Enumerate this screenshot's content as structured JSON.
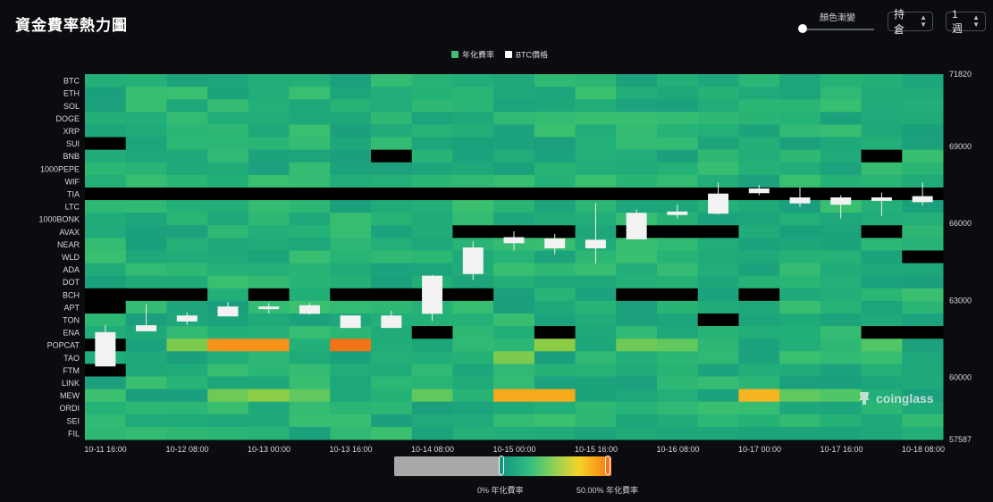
{
  "header": {
    "title": "資金費率熱力圖",
    "slider_label": "顏色漸變",
    "select_type": "持倉",
    "select_period": "1週"
  },
  "colorbar": {
    "min_label": "0% 年化費率",
    "max_label": "50.00% 年化費率"
  },
  "watermark": "coinglass",
  "chart_data": {
    "type": "heatmap",
    "legend": [
      {
        "name": "年化費率",
        "color": "#3fbf72"
      },
      {
        "name": "BTC價格",
        "color": "#ffffff"
      }
    ],
    "legend_position": "top",
    "rows": [
      "BTC",
      "ETH",
      "SOL",
      "DOGE",
      "XRP",
      "SUI",
      "BNB",
      "1000PEPE",
      "WIF",
      "TIA",
      "LTC",
      "1000BONK",
      "AVAX",
      "NEAR",
      "WLD",
      "ADA",
      "DOT",
      "BCH",
      "APT",
      "TON",
      "ENA",
      "POPCAT",
      "TAO",
      "FTM",
      "LINK",
      "MEW",
      "ORDI",
      "SEI",
      "FIL"
    ],
    "x_ticks": [
      "10-11 16:00",
      "10-12 08:00",
      "10-13 00:00",
      "10-13 16:00",
      "10-14 08:00",
      "10-15 00:00",
      "10-15 16:00",
      "10-16 08:00",
      "10-17 00:00",
      "10-17 16:00",
      "10-18 08:00"
    ],
    "y_right_ticks": [
      71820,
      69000,
      66000,
      63000,
      60000,
      57587
    ],
    "y_right_range": [
      57587,
      71820
    ],
    "color_scale": {
      "min": 0,
      "max": 50,
      "unit": "% annualized"
    },
    "column_count": 21,
    "black_cells": [
      [
        "SUI",
        0
      ],
      [
        "BNB",
        7
      ],
      [
        "BNB",
        19
      ],
      [
        "TIA",
        "all"
      ],
      [
        "AVAX",
        9
      ],
      [
        "AVAX",
        10
      ],
      [
        "AVAX",
        11
      ],
      [
        "AVAX",
        13
      ],
      [
        "AVAX",
        14
      ],
      [
        "AVAX",
        15
      ],
      [
        "AVAX",
        19
      ],
      [
        "WLD",
        20
      ],
      [
        "BCH",
        0
      ],
      [
        "BCH",
        1
      ],
      [
        "BCH",
        2
      ],
      [
        "BCH",
        4
      ],
      [
        "BCH",
        6
      ],
      [
        "BCH",
        7
      ],
      [
        "BCH",
        8
      ],
      [
        "BCH",
        9
      ],
      [
        "BCH",
        13
      ],
      [
        "BCH",
        14
      ],
      [
        "BCH",
        16
      ],
      [
        "APT",
        0
      ],
      [
        "TON",
        15
      ],
      [
        "ENA",
        8
      ],
      [
        "ENA",
        11
      ],
      [
        "ENA",
        19
      ],
      [
        "ENA",
        20
      ],
      [
        "POPCAT",
        0
      ],
      [
        "FTM",
        0
      ]
    ],
    "hot_cells": [
      [
        "POPCAT",
        3,
        48
      ],
      [
        "POPCAT",
        4,
        48
      ],
      [
        "POPCAT",
        6,
        50
      ],
      [
        "POPCAT",
        2,
        30
      ],
      [
        "POPCAT",
        11,
        32
      ],
      [
        "POPCAT",
        13,
        28
      ],
      [
        "POPCAT",
        14,
        26
      ],
      [
        "POPCAT",
        19,
        24
      ],
      [
        "TAO",
        10,
        30
      ],
      [
        "MEW",
        10,
        46
      ],
      [
        "MEW",
        11,
        46
      ],
      [
        "MEW",
        16,
        45
      ],
      [
        "MEW",
        4,
        32
      ],
      [
        "MEW",
        3,
        28
      ],
      [
        "MEW",
        5,
        26
      ],
      [
        "MEW",
        8,
        26
      ],
      [
        "MEW",
        17,
        26
      ],
      [
        "MEW",
        18,
        24
      ]
    ],
    "btc_candles": [
      {
        "t": 0,
        "o": 60450,
        "c": 61750,
        "h": 62050,
        "l": 60450
      },
      {
        "t": 1,
        "o": 62020,
        "c": 61820,
        "h": 62850,
        "l": 61820
      },
      {
        "t": 2,
        "o": 62200,
        "c": 62400,
        "h": 62550,
        "l": 62050
      },
      {
        "t": 3,
        "o": 62400,
        "c": 62750,
        "h": 62950,
        "l": 62400
      },
      {
        "t": 4,
        "o": 62700,
        "c": 62750,
        "h": 62900,
        "l": 62500
      },
      {
        "t": 5,
        "o": 62500,
        "c": 62800,
        "h": 62900,
        "l": 62450
      },
      {
        "t": 6,
        "o": 61950,
        "c": 62400,
        "h": 62400,
        "l": 61950
      },
      {
        "t": 7,
        "o": 62400,
        "c": 61950,
        "h": 62600,
        "l": 61950
      },
      {
        "t": 8,
        "o": 62500,
        "c": 63950,
        "h": 64000,
        "l": 62200
      },
      {
        "t": 9,
        "o": 64050,
        "c": 65050,
        "h": 65300,
        "l": 63800
      },
      {
        "t": 10,
        "o": 65250,
        "c": 65450,
        "h": 65700,
        "l": 64950
      },
      {
        "t": 11,
        "o": 65050,
        "c": 65400,
        "h": 65600,
        "l": 64800
      },
      {
        "t": 12,
        "o": 65050,
        "c": 65350,
        "h": 66800,
        "l": 64450
      },
      {
        "t": 13,
        "o": 65400,
        "c": 66400,
        "h": 66550,
        "l": 65400
      },
      {
        "t": 14,
        "o": 66350,
        "c": 66450,
        "h": 66750,
        "l": 66200
      },
      {
        "t": 15,
        "o": 66400,
        "c": 67150,
        "h": 67600,
        "l": 66350
      },
      {
        "t": 16,
        "o": 67200,
        "c": 67350,
        "h": 67500,
        "l": 67100
      },
      {
        "t": 17,
        "o": 66800,
        "c": 67000,
        "h": 67400,
        "l": 66650
      },
      {
        "t": 18,
        "o": 66750,
        "c": 67000,
        "h": 67100,
        "l": 66200
      },
      {
        "t": 19,
        "o": 66900,
        "c": 67000,
        "h": 67200,
        "l": 66300
      },
      {
        "t": 20,
        "o": 66850,
        "c": 67050,
        "h": 67600,
        "l": 66700
      }
    ]
  }
}
